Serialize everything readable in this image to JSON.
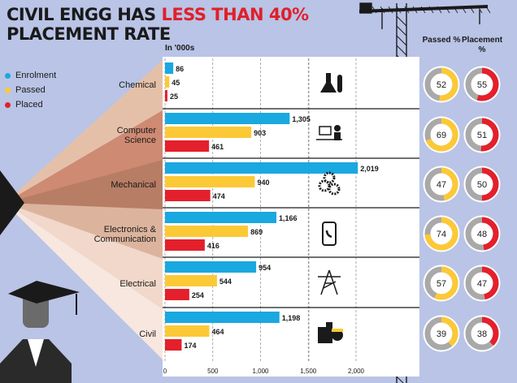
{
  "title": {
    "line1_prefix": "CIVIL ENGG HAS ",
    "line1_highlight": "LESS THAN 40%",
    "line2": "PLACEMENT RATE"
  },
  "units_label": "In '000s",
  "col_headers": {
    "passed": "Passed %",
    "placement": "Placement %"
  },
  "colors": {
    "enrolment": "#1aa8e0",
    "passed": "#fcc936",
    "placed": "#e3202b",
    "ring_bg": "#a9a9a9",
    "panel": "#ffffff"
  },
  "chart_data": {
    "type": "bar",
    "orientation": "horizontal",
    "title": "CIVIL ENGG HAS LESS THAN 40% PLACEMENT RATE",
    "xlabel": "In '000s",
    "xlim": [
      0,
      2500
    ],
    "xticks": [
      "0",
      "500",
      "1,000",
      "1,500",
      "2,000"
    ],
    "xtick_values": [
      0,
      500,
      1000,
      1500,
      2000
    ],
    "categories": [
      "Chemical",
      "Computer Science",
      "Mechanical",
      "Electronics & Communication",
      "Electrical",
      "Civil"
    ],
    "series": [
      {
        "name": "Enrolment",
        "values": [
          86,
          1305,
          2019,
          1166,
          954,
          1198
        ],
        "labels": [
          "86",
          "1,305",
          "2,019",
          "1,166",
          "954",
          "1,198"
        ]
      },
      {
        "name": "Passed",
        "values": [
          45,
          903,
          940,
          869,
          544,
          464
        ],
        "labels": [
          "45",
          "903",
          "940",
          "869",
          "544",
          "464"
        ]
      },
      {
        "name": "Placed",
        "values": [
          25,
          461,
          474,
          416,
          254,
          174
        ],
        "labels": [
          "25",
          "461",
          "474",
          "416",
          "254",
          "174"
        ]
      }
    ],
    "passed_pct": [
      52,
      69,
      47,
      74,
      57,
      39
    ],
    "placement_pct": [
      55,
      51,
      50,
      48,
      47,
      38
    ],
    "legend": [
      "Enrolment",
      "Passed",
      "Placed"
    ]
  }
}
